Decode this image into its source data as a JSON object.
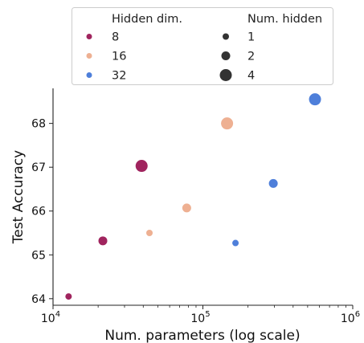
{
  "chart_data": {
    "type": "scatter",
    "xlabel": "Num. parameters (log scale)",
    "ylabel": "Test Accuracy",
    "xscale": "log",
    "xlim": [
      10000,
      1000000
    ],
    "ylim": [
      63.85,
      68.8
    ],
    "y_ticks": [
      64,
      65,
      66,
      67,
      68
    ],
    "x_ticks": [
      {
        "value": 10000,
        "base": "10",
        "exp": "4"
      },
      {
        "value": 100000,
        "base": "10",
        "exp": "5"
      },
      {
        "value": 1000000,
        "base": "10",
        "exp": "6"
      }
    ],
    "grid": false,
    "legend": {
      "placement": "top-center",
      "color_title": "Hidden dim.",
      "size_title": "Num. hidden",
      "color_entries": [
        {
          "label": "8",
          "color": "#a0245e"
        },
        {
          "label": "16",
          "color": "#eeb092"
        },
        {
          "label": "32",
          "color": "#4e7fda"
        }
      ],
      "size_entries": [
        {
          "label": "1",
          "num_hidden": 1
        },
        {
          "label": "2",
          "num_hidden": 2
        },
        {
          "label": "4",
          "num_hidden": 4
        }
      ]
    },
    "points": [
      {
        "hidden_dim": 8,
        "num_hidden": 1,
        "x": 12700,
        "y": 64.05
      },
      {
        "hidden_dim": 8,
        "num_hidden": 2,
        "x": 21500,
        "y": 65.32
      },
      {
        "hidden_dim": 8,
        "num_hidden": 4,
        "x": 39000,
        "y": 67.03
      },
      {
        "hidden_dim": 16,
        "num_hidden": 1,
        "x": 44000,
        "y": 65.5
      },
      {
        "hidden_dim": 16,
        "num_hidden": 2,
        "x": 78000,
        "y": 66.07
      },
      {
        "hidden_dim": 16,
        "num_hidden": 4,
        "x": 145000,
        "y": 68.0
      },
      {
        "hidden_dim": 32,
        "num_hidden": 1,
        "x": 165000,
        "y": 65.27
      },
      {
        "hidden_dim": 32,
        "num_hidden": 2,
        "x": 295000,
        "y": 66.63
      },
      {
        "hidden_dim": 32,
        "num_hidden": 4,
        "x": 560000,
        "y": 68.55
      }
    ]
  }
}
